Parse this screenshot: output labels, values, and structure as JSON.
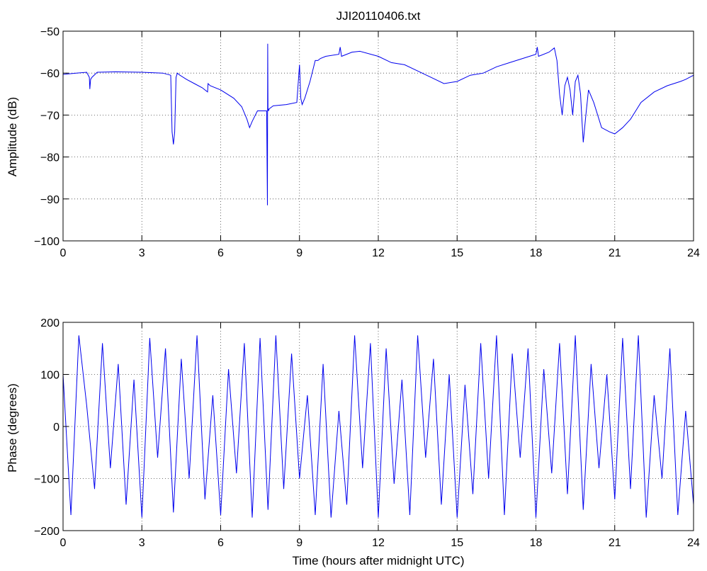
{
  "chart_data": [
    {
      "type": "line",
      "title": "JJI20110406.txt",
      "xlabel": "",
      "ylabel": "Amplitude (dB)",
      "xlim": [
        0,
        24
      ],
      "ylim": [
        -100,
        -50
      ],
      "xticks": [
        0,
        3,
        6,
        9,
        12,
        15,
        18,
        21,
        24
      ],
      "yticks": [
        -50,
        -60,
        -70,
        -80,
        -90,
        -100
      ],
      "ytick_labels": [
        "−50",
        "−60",
        "−70",
        "−80",
        "−90",
        "−100"
      ],
      "grid": true,
      "color": "#0000ee",
      "series": [
        {
          "x": [
            0,
            0.5,
            0.9,
            1.0,
            1.02,
            1.05,
            1.1,
            1.3,
            2.0,
            3.0,
            3.8,
            4.1,
            4.15,
            4.2,
            4.25,
            4.3,
            4.35,
            4.45,
            4.7,
            5.0,
            5.3,
            5.5,
            5.52,
            5.6,
            6.0,
            6.5,
            6.8,
            7.0,
            7.1,
            7.2,
            7.4,
            7.6,
            7.75,
            7.78,
            7.79,
            7.8,
            7.81,
            7.82,
            7.85,
            8.0,
            8.5,
            8.9,
            9.0,
            9.05,
            9.1,
            9.2,
            9.4,
            9.6,
            9.7,
            9.8,
            10.0,
            10.5,
            10.55,
            10.6,
            11.0,
            11.3,
            12.0,
            12.5,
            13.0,
            13.5,
            14.0,
            14.5,
            15.0,
            15.5,
            16.0,
            16.5,
            17.0,
            17.5,
            18.0,
            18.05,
            18.1,
            18.5,
            18.7,
            18.8,
            18.9,
            19.0,
            19.1,
            19.2,
            19.3,
            19.4,
            19.5,
            19.6,
            19.7,
            19.75,
            19.8,
            19.9,
            20.0,
            20.2,
            20.5,
            20.8,
            21.0,
            21.3,
            21.6,
            21.8,
            22.0,
            22.5,
            23.0,
            23.5,
            23.7,
            24.0
          ],
          "y": [
            -60.3,
            -60.0,
            -59.8,
            -61.0,
            -63.8,
            -61.5,
            -61.0,
            -59.8,
            -59.7,
            -59.8,
            -60.0,
            -60.5,
            -74.0,
            -77.0,
            -74.0,
            -61.0,
            -60.0,
            -60.5,
            -61.5,
            -62.5,
            -63.5,
            -64.5,
            -62.5,
            -63.0,
            -64.0,
            -66.0,
            -68.0,
            -71.0,
            -73.0,
            -71.5,
            -69.0,
            -69.0,
            -69.0,
            -91.5,
            -53.0,
            -69.0,
            -68.5,
            -69.0,
            -68.5,
            -67.8,
            -67.5,
            -67.0,
            -58.0,
            -66.0,
            -67.5,
            -66.0,
            -62.0,
            -57.0,
            -57.0,
            -56.5,
            -56.0,
            -55.5,
            -53.8,
            -56.0,
            -55.0,
            -54.8,
            -56.0,
            -57.5,
            -58.0,
            -59.5,
            -61.0,
            -62.5,
            -62.0,
            -60.5,
            -60.0,
            -58.5,
            -57.5,
            -56.5,
            -55.5,
            -53.8,
            -56.0,
            -55.0,
            -54.0,
            -57.0,
            -65.0,
            -70.0,
            -63.0,
            -61.0,
            -64.0,
            -70.0,
            -62.0,
            -60.5,
            -65.0,
            -71.0,
            -76.5,
            -70.0,
            -64.0,
            -67.0,
            -73.0,
            -74.0,
            -74.5,
            -73.0,
            -71.0,
            -69.0,
            -67.0,
            -64.5,
            -63.0,
            -62.0,
            -61.5,
            -60.5
          ]
        }
      ]
    },
    {
      "type": "line",
      "title": "",
      "xlabel": "Time (hours after midnight UTC)",
      "ylabel": "Phase (degrees)",
      "xlim": [
        0,
        24
      ],
      "ylim": [
        -200,
        200
      ],
      "xticks": [
        0,
        3,
        6,
        9,
        12,
        15,
        18,
        21,
        24
      ],
      "yticks": [
        200,
        100,
        0,
        -100,
        -200
      ],
      "ytick_labels": [
        "200",
        "100",
        "0",
        "−100",
        "−200"
      ],
      "grid": true,
      "color": "#0000ee",
      "series": [
        {
          "x": [
            0,
            0.3,
            0.6,
            0.9,
            1.2,
            1.5,
            1.8,
            2.1,
            2.4,
            2.7,
            3.0,
            3.3,
            3.6,
            3.9,
            4.2,
            4.5,
            4.8,
            5.1,
            5.4,
            5.7,
            6.0,
            6.3,
            6.6,
            6.9,
            7.2,
            7.5,
            7.8,
            8.1,
            8.4,
            8.7,
            9.0,
            9.3,
            9.6,
            9.9,
            10.2,
            10.5,
            10.8,
            11.1,
            11.4,
            11.7,
            12.0,
            12.3,
            12.6,
            12.9,
            13.2,
            13.5,
            13.8,
            14.1,
            14.4,
            14.7,
            15.0,
            15.3,
            15.6,
            15.9,
            16.2,
            16.5,
            16.8,
            17.1,
            17.4,
            17.7,
            18.0,
            18.3,
            18.6,
            18.9,
            19.2,
            19.5,
            19.8,
            20.1,
            20.4,
            20.7,
            21.0,
            21.3,
            21.6,
            21.9,
            22.2,
            22.5,
            22.8,
            23.1,
            23.4,
            23.7,
            24.0
          ],
          "y": [
            100,
            -170,
            175,
            40,
            -120,
            160,
            -80,
            120,
            -150,
            90,
            -175,
            170,
            -60,
            150,
            -165,
            130,
            -100,
            175,
            -140,
            60,
            -170,
            110,
            -90,
            160,
            -175,
            170,
            -160,
            175,
            -120,
            140,
            -100,
            60,
            -170,
            120,
            -175,
            30,
            -150,
            175,
            -80,
            160,
            -175,
            150,
            -110,
            90,
            -170,
            175,
            -60,
            130,
            -150,
            100,
            -175,
            80,
            -130,
            160,
            -100,
            175,
            -170,
            140,
            -60,
            150,
            -175,
            110,
            -90,
            160,
            -130,
            175,
            -160,
            120,
            -80,
            100,
            -140,
            170,
            -120,
            175,
            -175,
            60,
            -100,
            150,
            -170,
            30,
            -150
          ]
        }
      ]
    }
  ]
}
